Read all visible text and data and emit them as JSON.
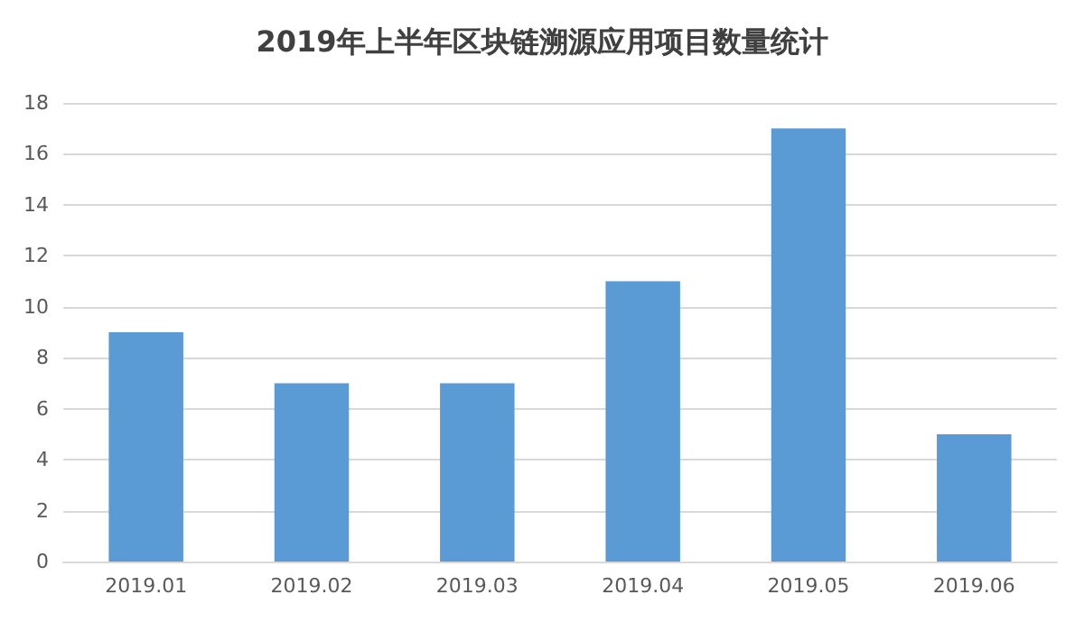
{
  "chart_data": {
    "type": "bar",
    "title": "2019年上半年区块链溯源应用项目数量统计",
    "categories": [
      "2019.01",
      "2019.02",
      "2019.03",
      "2019.04",
      "2019.05",
      "2019.06"
    ],
    "values": [
      9,
      7,
      7,
      11,
      17,
      5
    ],
    "color": "#5b9bd5",
    "ylim": [
      0,
      18
    ],
    "yticks": [
      0,
      2,
      4,
      6,
      8,
      10,
      12,
      14,
      16,
      18
    ],
    "grid": "y"
  }
}
